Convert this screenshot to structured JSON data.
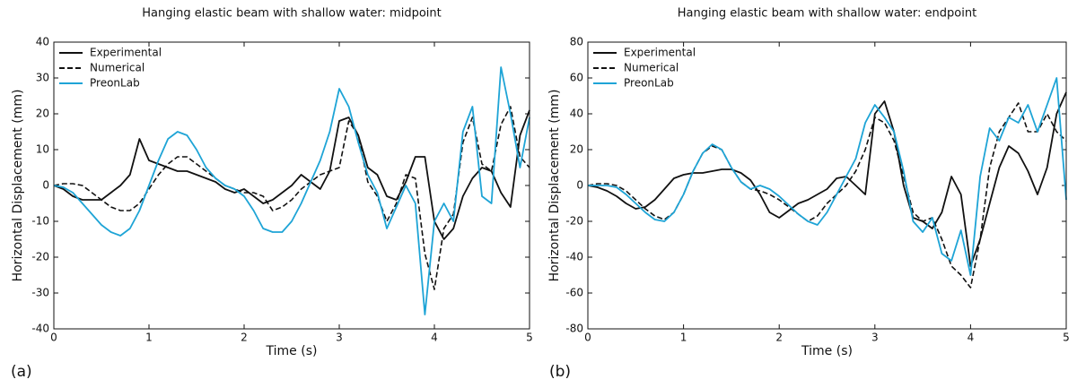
{
  "chart_data": [
    {
      "type": "line",
      "title": "Hanging elastic beam with shallow water: midpoint",
      "xlabel": "Time (s)",
      "ylabel": "Horizontal Displacement (mm)",
      "panel_label": "(a)",
      "legend": "upper left",
      "x": [
        0,
        0.1,
        0.2,
        0.3,
        0.4,
        0.5,
        0.6,
        0.7,
        0.8,
        0.9,
        1,
        1.1,
        1.2,
        1.3,
        1.4,
        1.5,
        1.6,
        1.7,
        1.8,
        1.9,
        2,
        2.1,
        2.2,
        2.3,
        2.4,
        2.5,
        2.6,
        2.7,
        2.8,
        2.9,
        3,
        3.1,
        3.2,
        3.3,
        3.4,
        3.5,
        3.6,
        3.7,
        3.8,
        3.9,
        4,
        4.1,
        4.2,
        4.3,
        4.4,
        4.5,
        4.6,
        4.7,
        4.8,
        4.9,
        5
      ],
      "xlim": [
        0,
        5
      ],
      "xticks": [
        0,
        1,
        2,
        3,
        4,
        5
      ],
      "ylim": [
        -40,
        40
      ],
      "yticks": [
        -40,
        -30,
        -20,
        -10,
        0,
        10,
        20,
        30,
        40
      ],
      "series": [
        {
          "name": "Experimental",
          "color": "#111111",
          "linestyle": "solid",
          "values": [
            0,
            -1,
            -3,
            -4,
            -4,
            -4,
            -2,
            0,
            3,
            13,
            7,
            6,
            5,
            4,
            4,
            3,
            2,
            1,
            -1,
            -2,
            -1,
            -3,
            -5,
            -4,
            -2,
            0,
            3,
            1,
            -1,
            4,
            18,
            19,
            14,
            5,
            3,
            -3,
            -4,
            1,
            8,
            8,
            -10,
            -15,
            -12,
            -3,
            2,
            5,
            4,
            -2,
            -6,
            14,
            21
          ]
        },
        {
          "name": "Numerical",
          "color": "#111111",
          "linestyle": "dashed",
          "values": [
            0,
            0.5,
            0.5,
            0,
            -2,
            -4,
            -6,
            -7,
            -7,
            -5,
            -1,
            3,
            6,
            8,
            8,
            6,
            4,
            2,
            0,
            -1,
            -2,
            -2,
            -3,
            -7,
            -6,
            -4,
            -1,
            1,
            3,
            4,
            5,
            18,
            14,
            1,
            -3,
            -10,
            -5,
            3,
            2,
            -19,
            -29,
            -12,
            -8,
            12,
            19,
            6,
            4,
            17,
            22,
            8,
            5
          ]
        },
        {
          "name": "PreonLab",
          "color": "#1ea4d6",
          "linestyle": "solid",
          "values": [
            0,
            -0.5,
            -2,
            -5,
            -8,
            -11,
            -13,
            -14,
            -12,
            -7,
            0,
            7,
            13,
            15,
            14,
            10,
            5,
            2,
            0,
            -1,
            -3,
            -7,
            -12,
            -13,
            -13,
            -10,
            -5,
            1,
            7,
            15,
            27,
            22,
            12,
            3,
            -2,
            -12,
            -6,
            0,
            -5,
            -36,
            -10,
            -5,
            -10,
            15,
            22,
            -3,
            -5,
            33,
            20,
            5,
            19
          ]
        }
      ]
    },
    {
      "type": "line",
      "title": "Hanging elastic beam with shallow water: endpoint",
      "xlabel": "Time (s)",
      "ylabel": "Horizontal Displacement (mm)",
      "panel_label": "(b)",
      "legend": "upper left",
      "x": [
        0,
        0.1,
        0.2,
        0.3,
        0.4,
        0.5,
        0.6,
        0.7,
        0.8,
        0.9,
        1,
        1.1,
        1.2,
        1.3,
        1.4,
        1.5,
        1.6,
        1.7,
        1.8,
        1.9,
        2,
        2.1,
        2.2,
        2.3,
        2.4,
        2.5,
        2.6,
        2.7,
        2.8,
        2.9,
        3,
        3.1,
        3.2,
        3.3,
        3.4,
        3.5,
        3.6,
        3.7,
        3.8,
        3.9,
        4,
        4.1,
        4.2,
        4.3,
        4.4,
        4.5,
        4.6,
        4.7,
        4.8,
        4.9,
        5
      ],
      "xlim": [
        0,
        5
      ],
      "xticks": [
        0,
        1,
        2,
        3,
        4,
        5
      ],
      "ylim": [
        -80,
        80
      ],
      "yticks": [
        -80,
        -60,
        -40,
        -20,
        0,
        20,
        40,
        60,
        80
      ],
      "series": [
        {
          "name": "Experimental",
          "color": "#111111",
          "linestyle": "solid",
          "values": [
            0,
            -1,
            -3,
            -6,
            -10,
            -13,
            -12,
            -8,
            -2,
            4,
            6,
            7,
            7,
            8,
            9,
            9,
            7,
            3,
            -5,
            -15,
            -18,
            -14,
            -10,
            -8,
            -5,
            -2,
            4,
            5,
            0,
            -5,
            40,
            47,
            30,
            0,
            -18,
            -20,
            -24,
            -15,
            5,
            -5,
            -45,
            -30,
            -10,
            10,
            22,
            18,
            8,
            -5,
            10,
            40,
            52
          ]
        },
        {
          "name": "Numerical",
          "color": "#111111",
          "linestyle": "dashed",
          "values": [
            0,
            1,
            1,
            0,
            -3,
            -8,
            -13,
            -17,
            -19,
            -15,
            -5,
            8,
            18,
            22,
            20,
            10,
            2,
            -2,
            -3,
            -5,
            -8,
            -12,
            -16,
            -20,
            -17,
            -10,
            -5,
            0,
            8,
            20,
            38,
            35,
            25,
            5,
            -15,
            -20,
            -18,
            -30,
            -45,
            -50,
            -57,
            -30,
            10,
            30,
            38,
            46,
            30,
            30,
            40,
            30,
            25
          ]
        },
        {
          "name": "PreonLab",
          "color": "#1ea4d6",
          "linestyle": "solid",
          "values": [
            0,
            0,
            0,
            -1,
            -5,
            -10,
            -15,
            -19,
            -20,
            -15,
            -5,
            8,
            18,
            23,
            20,
            10,
            2,
            -2,
            0,
            -2,
            -6,
            -11,
            -16,
            -20,
            -22,
            -15,
            -5,
            5,
            15,
            35,
            45,
            38,
            30,
            8,
            -20,
            -26,
            -18,
            -38,
            -42,
            -25,
            -50,
            5,
            32,
            25,
            38,
            35,
            45,
            30,
            45,
            60,
            -8
          ]
        }
      ]
    }
  ]
}
